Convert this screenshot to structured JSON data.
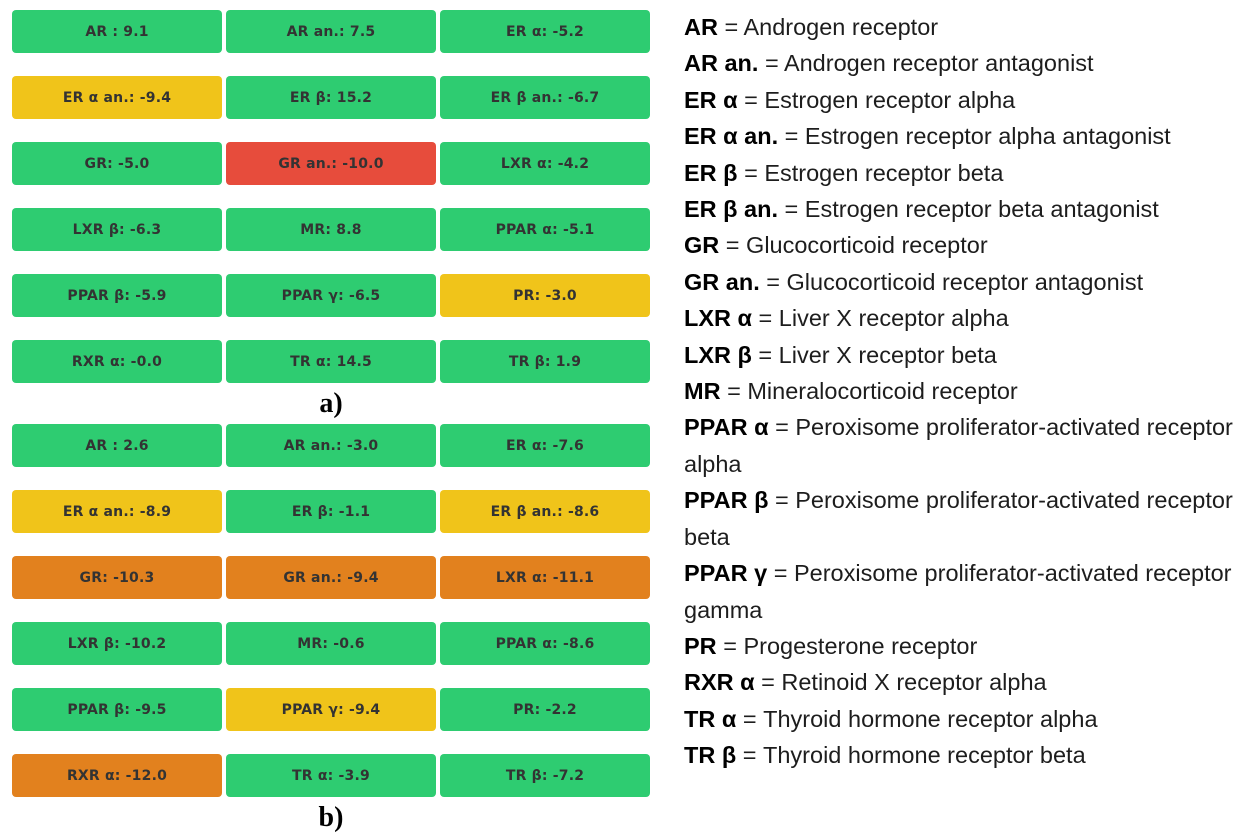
{
  "colors": {
    "green": "#2ecc71",
    "yellow": "#f0c41a",
    "red": "#e74c3c",
    "orange": "#e2811e"
  },
  "legend_eq": "=",
  "legend": [
    {
      "abbr": "AR",
      "full": "Androgen receptor"
    },
    {
      "abbr": "AR an.",
      "full": "Androgen receptor antagonist"
    },
    {
      "abbr": "ER α",
      "full": "Estrogen receptor alpha"
    },
    {
      "abbr": "ER α an.",
      "full": "Estrogen receptor alpha antagonist"
    },
    {
      "abbr": "ER β",
      "full": "Estrogen receptor beta"
    },
    {
      "abbr": "ER β an.",
      "full": "Estrogen receptor beta antagonist"
    },
    {
      "abbr": "GR",
      "full": "Glucocorticoid receptor"
    },
    {
      "abbr": "GR an.",
      "full": "Glucocorticoid receptor antagonist"
    },
    {
      "abbr": "LXR α",
      "full": "Liver X receptor alpha"
    },
    {
      "abbr": "LXR β",
      "full": "Liver X receptor beta"
    },
    {
      "abbr": "MR",
      "full": "Mineralocorticoid receptor"
    },
    {
      "abbr": "PPAR α",
      "full": "Peroxisome proliferator-activated receptor alpha"
    },
    {
      "abbr": "PPAR β",
      "full": "Peroxisome proliferator-activated receptor beta"
    },
    {
      "abbr": "PPAR γ",
      "full": "Peroxisome proliferator-activated receptor gamma"
    },
    {
      "abbr": "PR",
      "full": "Progesterone receptor"
    },
    {
      "abbr": "RXR α",
      "full": "Retinoid X receptor alpha"
    },
    {
      "abbr": "TR α",
      "full": "Thyroid hormone receptor alpha"
    },
    {
      "abbr": "TR β",
      "full": "Thyroid hormone receptor beta"
    }
  ],
  "chart_data": [
    {
      "type": "heatmap",
      "panel_label": "a)",
      "grid": {
        "rows": 6,
        "cols": 3
      },
      "color_key_names": [
        "green",
        "yellow",
        "orange",
        "red"
      ],
      "cells": [
        {
          "label": "AR",
          "display": "AR : 9.1",
          "value": 9.1,
          "color": "green"
        },
        {
          "label": "AR an.",
          "display": "AR an.: 7.5",
          "value": 7.5,
          "color": "green"
        },
        {
          "label": "ER α",
          "display": "ER α: -5.2",
          "value": -5.2,
          "color": "green"
        },
        {
          "label": "ER α an.",
          "display": "ER α an.: -9.4",
          "value": -9.4,
          "color": "yellow"
        },
        {
          "label": "ER β",
          "display": "ER β: 15.2",
          "value": 15.2,
          "color": "green"
        },
        {
          "label": "ER β an.",
          "display": "ER β an.: -6.7",
          "value": -6.7,
          "color": "green"
        },
        {
          "label": "GR",
          "display": "GR: -5.0",
          "value": -5.0,
          "color": "green"
        },
        {
          "label": "GR an.",
          "display": "GR an.: -10.0",
          "value": -10.0,
          "color": "red"
        },
        {
          "label": "LXR α",
          "display": "LXR α: -4.2",
          "value": -4.2,
          "color": "green"
        },
        {
          "label": "LXR β",
          "display": "LXR β: -6.3",
          "value": -6.3,
          "color": "green"
        },
        {
          "label": "MR",
          "display": "MR: 8.8",
          "value": 8.8,
          "color": "green"
        },
        {
          "label": "PPAR α",
          "display": "PPAR α: -5.1",
          "value": -5.1,
          "color": "green"
        },
        {
          "label": "PPAR β",
          "display": "PPAR β: -5.9",
          "value": -5.9,
          "color": "green"
        },
        {
          "label": "PPAR γ",
          "display": "PPAR γ: -6.5",
          "value": -6.5,
          "color": "green"
        },
        {
          "label": "PR",
          "display": "PR: -3.0",
          "value": -3.0,
          "color": "yellow"
        },
        {
          "label": "RXR α",
          "display": "RXR α: -0.0",
          "value": -0.0,
          "color": "green"
        },
        {
          "label": "TR α",
          "display": "TR α: 14.5",
          "value": 14.5,
          "color": "green"
        },
        {
          "label": "TR β",
          "display": "TR β: 1.9",
          "value": 1.9,
          "color": "green"
        }
      ]
    },
    {
      "type": "heatmap",
      "panel_label": "b)",
      "grid": {
        "rows": 6,
        "cols": 3
      },
      "color_key_names": [
        "green",
        "yellow",
        "orange",
        "red"
      ],
      "cells": [
        {
          "label": "AR",
          "display": "AR : 2.6",
          "value": 2.6,
          "color": "green"
        },
        {
          "label": "AR an.",
          "display": "AR an.: -3.0",
          "value": -3.0,
          "color": "green"
        },
        {
          "label": "ER α",
          "display": "ER α: -7.6",
          "value": -7.6,
          "color": "green"
        },
        {
          "label": "ER α an.",
          "display": "ER α an.: -8.9",
          "value": -8.9,
          "color": "yellow"
        },
        {
          "label": "ER β",
          "display": "ER β: -1.1",
          "value": -1.1,
          "color": "green"
        },
        {
          "label": "ER β an.",
          "display": "ER β an.: -8.6",
          "value": -8.6,
          "color": "yellow"
        },
        {
          "label": "GR",
          "display": "GR: -10.3",
          "value": -10.3,
          "color": "orange"
        },
        {
          "label": "GR an.",
          "display": "GR an.: -9.4",
          "value": -9.4,
          "color": "orange"
        },
        {
          "label": "LXR α",
          "display": "LXR α: -11.1",
          "value": -11.1,
          "color": "orange"
        },
        {
          "label": "LXR β",
          "display": "LXR β: -10.2",
          "value": -10.2,
          "color": "green"
        },
        {
          "label": "MR",
          "display": "MR: -0.6",
          "value": -0.6,
          "color": "green"
        },
        {
          "label": "PPAR α",
          "display": "PPAR α: -8.6",
          "value": -8.6,
          "color": "green"
        },
        {
          "label": "PPAR β",
          "display": "PPAR β: -9.5",
          "value": -9.5,
          "color": "green"
        },
        {
          "label": "PPAR γ",
          "display": "PPAR γ: -9.4",
          "value": -9.4,
          "color": "yellow"
        },
        {
          "label": "PR",
          "display": "PR: -2.2",
          "value": -2.2,
          "color": "green"
        },
        {
          "label": "RXR α",
          "display": "RXR α: -12.0",
          "value": -12.0,
          "color": "orange"
        },
        {
          "label": "TR α",
          "display": "TR α: -3.9",
          "value": -3.9,
          "color": "green"
        },
        {
          "label": "TR β",
          "display": "TR β: -7.2",
          "value": -7.2,
          "color": "green"
        }
      ]
    }
  ]
}
